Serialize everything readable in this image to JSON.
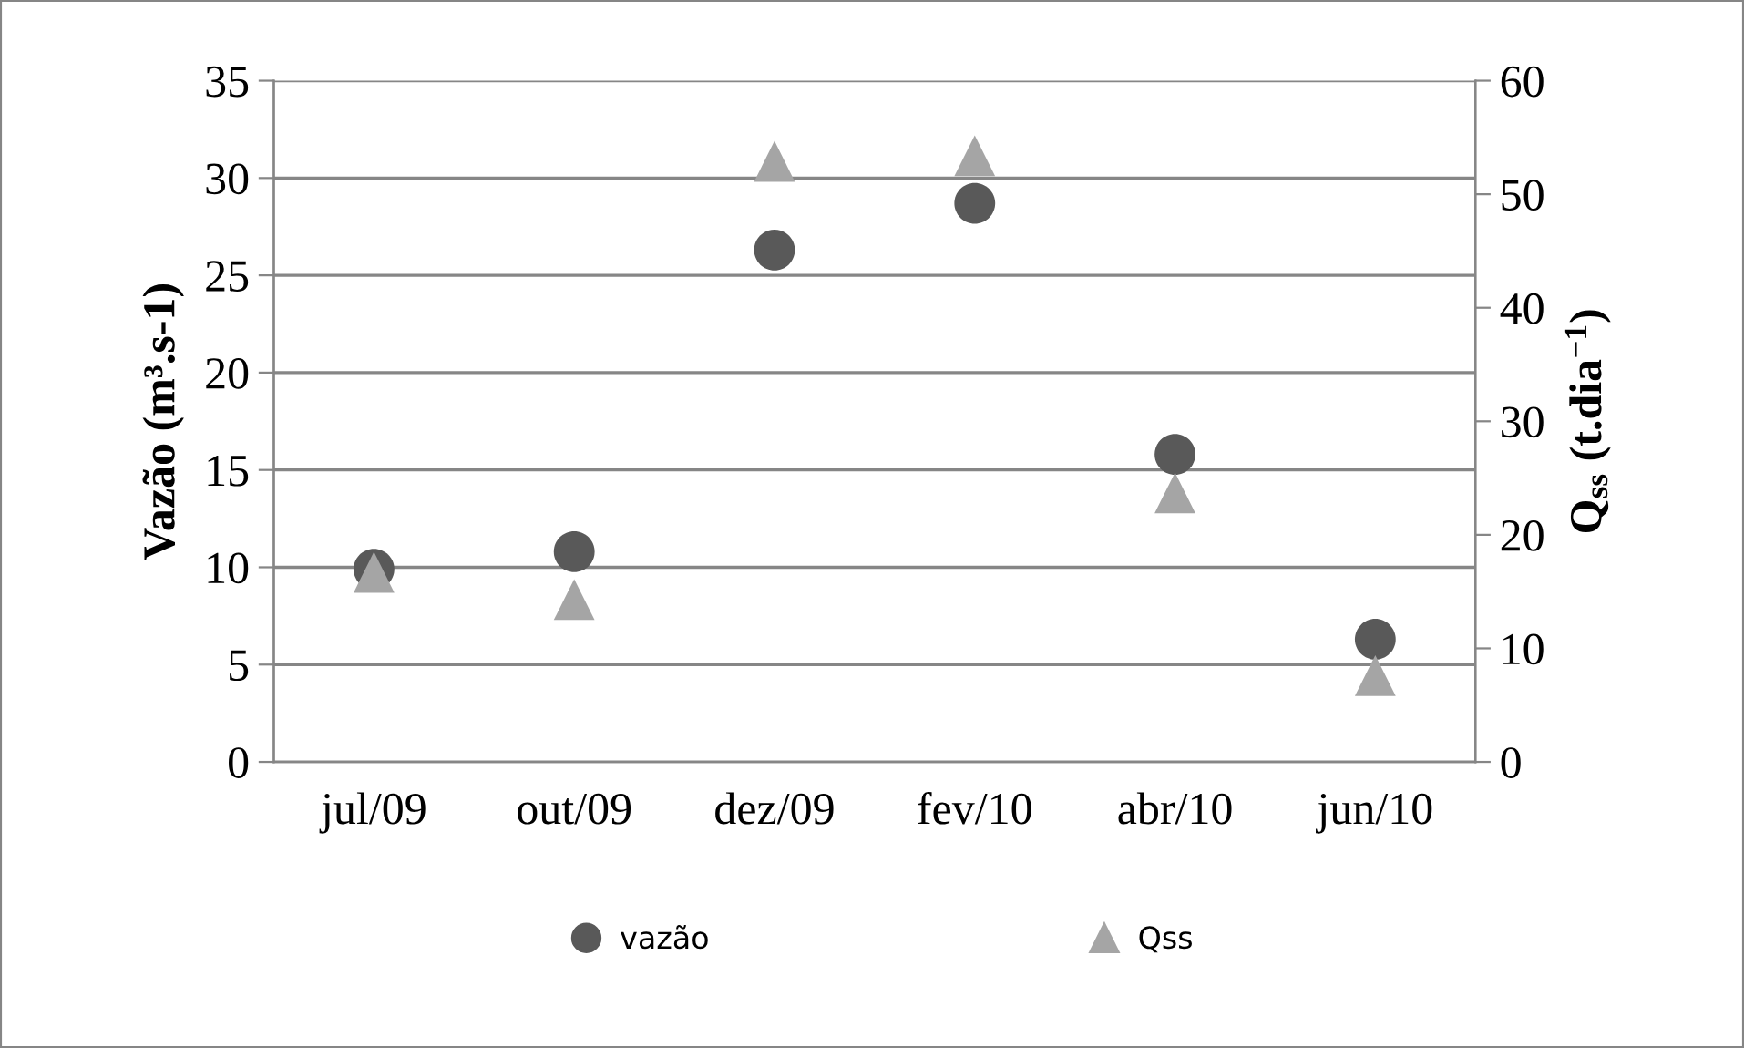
{
  "chart_data": {
    "type": "scatter",
    "categories": [
      "jul/09",
      "out/09",
      "dez/09",
      "fev/10",
      "abr/10",
      "jun/10"
    ],
    "ylabel": "Vazão (m³.s-1)",
    "y2label": "Q$_{ss}$ (t.dia$^{−1}$)",
    "ylim": [
      0,
      35
    ],
    "yticks": [
      0,
      5,
      10,
      15,
      20,
      25,
      30,
      35
    ],
    "y2lim": [
      0,
      60
    ],
    "y2ticks": [
      0,
      10,
      20,
      30,
      40,
      50,
      60
    ],
    "grid": "y",
    "legend": "bottom",
    "series": [
      {
        "name": "vazão",
        "color": "#595959",
        "marker": "circle",
        "values": [
          9.9,
          10.8,
          26.3,
          28.7,
          15.8,
          6.3
        ]
      },
      {
        "name": "Qss",
        "color": "#a5a5a5",
        "marker": "triangle",
        "axis": "y2",
        "values": [
          16.7,
          14.3,
          52.9,
          53.4,
          23.7,
          7.6
        ]
      }
    ]
  }
}
